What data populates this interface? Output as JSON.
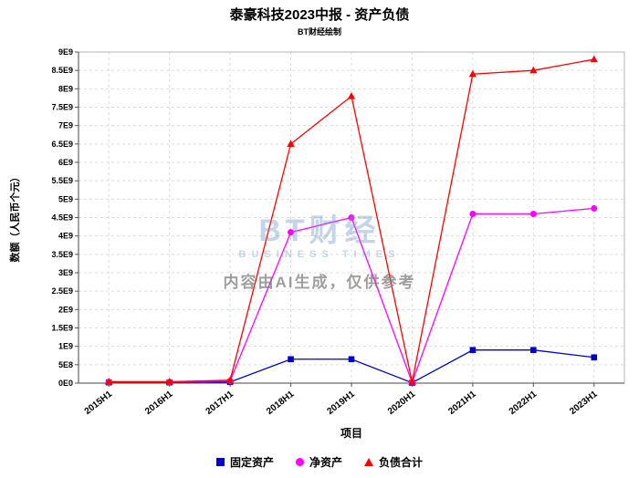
{
  "header": {
    "title": "泰豪科技2023中报 - 资产负债",
    "subtitle": "BT财经绘制"
  },
  "watermark": {
    "logo": "BT财经",
    "logo_sub": "BUSINESS TIMES",
    "notice": "内容由AI生成，仅供参考"
  },
  "chart_data": {
    "type": "line",
    "title": "泰豪科技2023中报 - 资产负债",
    "xlabel": "项目",
    "ylabel": "数额（人民币个元）",
    "categories": [
      "2015H1",
      "2016H1",
      "2017H1",
      "2018H1",
      "2019H1",
      "2020H1",
      "2021H1",
      "2022H1",
      "2023H1"
    ],
    "series": [
      {
        "name": "固定资产",
        "marker": "square",
        "color": "#0000CD",
        "values": [
          20000000.0,
          20000000.0,
          30000000.0,
          650000000.0,
          650000000.0,
          10000000.0,
          900000000.0,
          900000000.0,
          700000000.0
        ]
      },
      {
        "name": "净资产",
        "marker": "circle",
        "color": "#FF00FF",
        "values": [
          30000000.0,
          30000000.0,
          60000000.0,
          4100000000.0,
          4500000000.0,
          20000000.0,
          4600000000.0,
          4600000000.0,
          4750000000.0
        ]
      },
      {
        "name": "负债合计",
        "marker": "triangle",
        "color": "#FF0000",
        "values": [
          40000000.0,
          40000000.0,
          80000000.0,
          6500000000.0,
          7800000000.0,
          30000000.0,
          8400000000.0,
          8500000000.0,
          8800000000.0
        ]
      }
    ],
    "ylim": [
      0,
      9000000000.0
    ],
    "ytick_step": 500000000.0,
    "ytick_labels": [
      "0E0",
      "5E8",
      "1E9",
      "1.5E9",
      "2E9",
      "2.5E9",
      "3E9",
      "3.5E9",
      "4E9",
      "4.5E9",
      "5E9",
      "5.5E9",
      "6E9",
      "6.5E9",
      "7E9",
      "7.5E9",
      "8E9",
      "8.5E9",
      "9E9"
    ],
    "grid": true,
    "legend_position": "bottom"
  }
}
